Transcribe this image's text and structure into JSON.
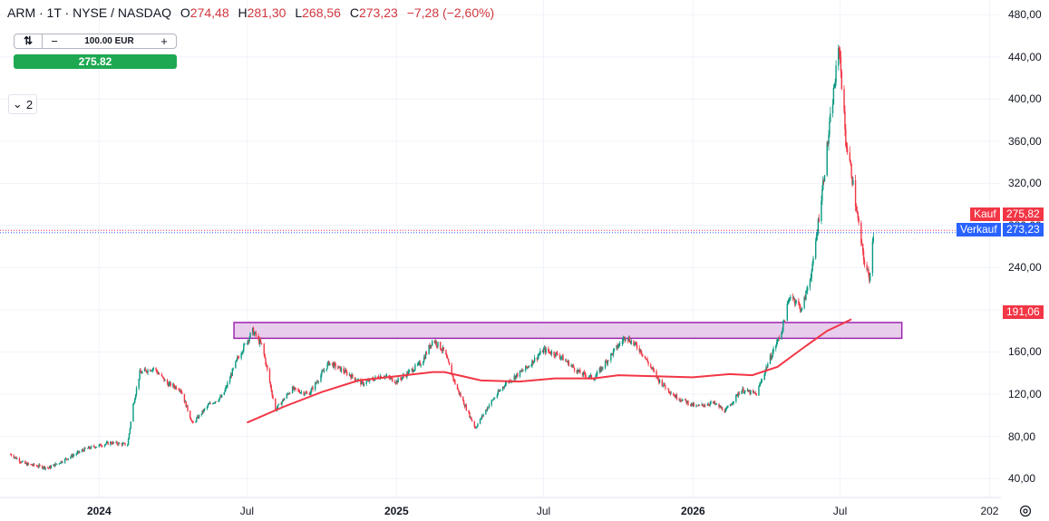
{
  "header": {
    "symbol": "ARM · 1T · NYSE / NASDAQ",
    "o_label": "O",
    "o_value": "274,48",
    "h_label": "H",
    "h_value": "281,30",
    "l_label": "L",
    "l_value": "268,56",
    "c_label": "C",
    "c_value": "273,23",
    "change": "−7,28 (−2,60%)"
  },
  "trade": {
    "quantity": "100.00 EUR",
    "minus": "−",
    "plus": "+",
    "price_button": "275.82"
  },
  "collapse": {
    "count": "2"
  },
  "price_labels": {
    "buy_label": "Kauf",
    "buy_value": "275,82",
    "sell_label": "Verkauf",
    "sell_value": "273,23",
    "ma_value": "191,06"
  },
  "colors": {
    "up": "#089981",
    "down": "#f23645",
    "ma": "#f23645",
    "zone_fill": "#e9cdec",
    "zone_stroke": "#9c27b0",
    "buy": "#f23645",
    "sell": "#2962ff",
    "trade_button": "#1ea852"
  },
  "chart_data": {
    "type": "candlestick",
    "yticks": [
      "40,00",
      "80,00",
      "120,00",
      "160,00",
      "200,00",
      "240,00",
      "280,00",
      "320,00",
      "360,00",
      "400,00",
      "440,00",
      "480,00"
    ],
    "xticks": [
      "2024",
      "Jul",
      "2025",
      "Jul",
      "2026",
      "Jul",
      "202"
    ],
    "ylim": [
      22,
      494
    ],
    "xlim": [
      "2023-09-01",
      "2027-01-15"
    ],
    "grid": true,
    "current_price": 273.23,
    "zone": {
      "from": "2024-06-15",
      "to": "2026-09-15",
      "low": 173,
      "high": 188
    },
    "moving_average": {
      "name": "MA",
      "points": [
        [
          "2024-07-01",
          93
        ],
        [
          "2024-08-15",
          108
        ],
        [
          "2024-10-01",
          122
        ],
        [
          "2024-11-15",
          133
        ],
        [
          "2025-01-01",
          137
        ],
        [
          "2025-02-15",
          141
        ],
        [
          "2025-03-01",
          141
        ],
        [
          "2025-04-15",
          133
        ],
        [
          "2025-06-01",
          132
        ],
        [
          "2025-07-15",
          135
        ],
        [
          "2025-09-01",
          135
        ],
        [
          "2025-10-01",
          138
        ],
        [
          "2025-11-15",
          137
        ],
        [
          "2026-01-01",
          136
        ],
        [
          "2026-02-15",
          139
        ],
        [
          "2026-03-15",
          138
        ],
        [
          "2026-04-15",
          146
        ],
        [
          "2026-05-15",
          163
        ],
        [
          "2026-06-15",
          180
        ],
        [
          "2026-07-15",
          191
        ]
      ]
    },
    "price_anchors": [
      [
        "2023-09-14",
        63
      ],
      [
        "2023-10-01",
        54
      ],
      [
        "2023-10-31",
        50
      ],
      [
        "2023-11-15",
        56
      ],
      [
        "2023-12-15",
        68
      ],
      [
        "2024-01-15",
        74
      ],
      [
        "2024-02-05",
        72
      ],
      [
        "2024-02-12",
        110
      ],
      [
        "2024-02-20",
        140
      ],
      [
        "2024-03-08",
        145
      ],
      [
        "2024-03-25",
        130
      ],
      [
        "2024-04-10",
        125
      ],
      [
        "2024-04-25",
        92
      ],
      [
        "2024-05-15",
        110
      ],
      [
        "2024-06-01",
        118
      ],
      [
        "2024-06-20",
        155
      ],
      [
        "2024-07-08",
        180
      ],
      [
        "2024-07-20",
        165
      ],
      [
        "2024-08-05",
        105
      ],
      [
        "2024-08-25",
        125
      ],
      [
        "2024-09-15",
        120
      ],
      [
        "2024-10-10",
        150
      ],
      [
        "2024-11-01",
        140
      ],
      [
        "2024-11-20",
        130
      ],
      [
        "2024-12-15",
        138
      ],
      [
        "2025-01-01",
        132
      ],
      [
        "2025-01-15",
        140
      ],
      [
        "2025-02-01",
        150
      ],
      [
        "2025-02-15",
        172
      ],
      [
        "2025-03-01",
        160
      ],
      [
        "2025-03-15",
        128
      ],
      [
        "2025-04-08",
        88
      ],
      [
        "2025-04-25",
        110
      ],
      [
        "2025-05-15",
        130
      ],
      [
        "2025-06-10",
        145
      ],
      [
        "2025-07-01",
        162
      ],
      [
        "2025-07-20",
        157
      ],
      [
        "2025-08-15",
        140
      ],
      [
        "2025-09-01",
        135
      ],
      [
        "2025-09-25",
        160
      ],
      [
        "2025-10-10",
        175
      ],
      [
        "2025-10-28",
        162
      ],
      [
        "2025-11-20",
        133
      ],
      [
        "2025-12-10",
        118
      ],
      [
        "2026-01-05",
        108
      ],
      [
        "2026-01-25",
        112
      ],
      [
        "2026-02-10",
        104
      ],
      [
        "2026-03-01",
        124
      ],
      [
        "2026-03-20",
        120
      ],
      [
        "2026-04-01",
        145
      ],
      [
        "2026-04-20",
        180
      ],
      [
        "2026-05-01",
        215
      ],
      [
        "2026-05-15",
        200
      ],
      [
        "2026-05-28",
        240
      ],
      [
        "2026-06-10",
        320
      ],
      [
        "2026-06-22",
        400
      ],
      [
        "2026-06-30",
        450
      ],
      [
        "2026-07-08",
        360
      ],
      [
        "2026-07-15",
        330
      ],
      [
        "2026-07-22",
        290
      ],
      [
        "2026-07-30",
        248
      ],
      [
        "2026-08-06",
        230
      ],
      [
        "2026-08-11",
        273
      ]
    ]
  }
}
